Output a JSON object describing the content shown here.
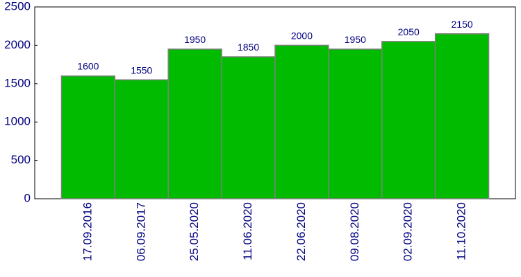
{
  "chart_data": {
    "type": "bar",
    "categories": [
      "17.09.2016",
      "06.09.2017",
      "25.05.2020",
      "11.06.2020",
      "22.06.2020",
      "09.08.2020",
      "02.09.2020",
      "11.10.2020"
    ],
    "values": [
      1600,
      1550,
      1950,
      1850,
      2000,
      1950,
      2050,
      2150
    ],
    "color": "#00bb00",
    "ylim": [
      0,
      2500
    ],
    "yticks": [
      0,
      500,
      1000,
      1500,
      2000,
      2500
    ],
    "grid": false
  }
}
